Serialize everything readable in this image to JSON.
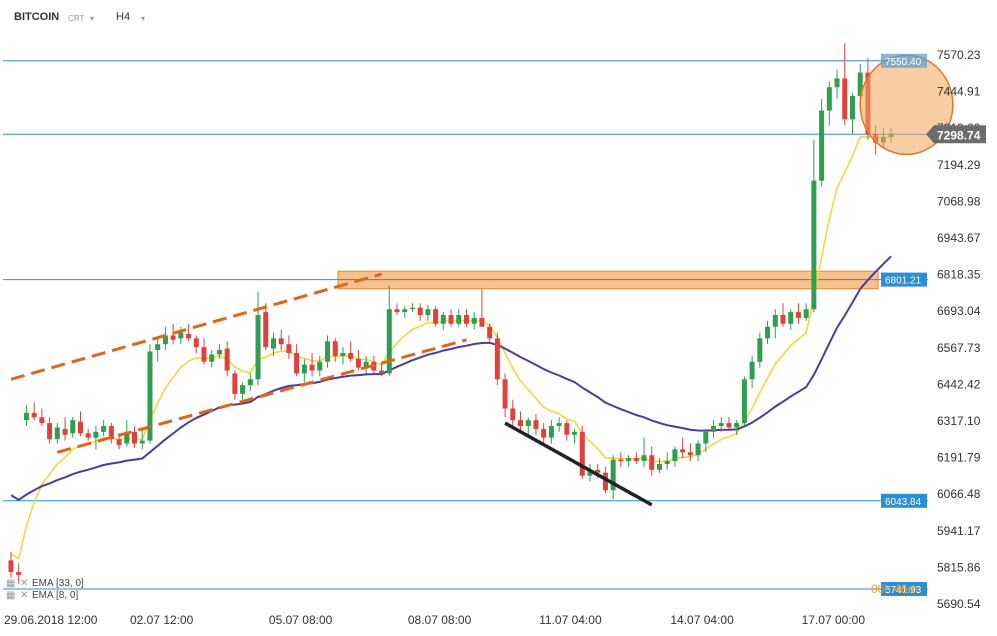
{
  "toolbar": {
    "symbol": "BITCOIN",
    "crt_label": "CRT",
    "timeframe": "H4"
  },
  "indicators": [
    {
      "label": "EMA",
      "params": "[33, 0]"
    },
    {
      "label": "EMA",
      "params": "[8, 0]"
    }
  ],
  "countdown": "00h 46m",
  "colors": {
    "bull": "#2e9e4f",
    "bear": "#e0413b",
    "ema_fast": "#f5d63d",
    "ema_slow": "#4f3aa0",
    "hline": "#2a8fd6",
    "zone": "#f5a55a",
    "trend_dash": "#e0651a",
    "trend_solid": "#222222",
    "price_box": "#6b6b6b",
    "level_box": "#2a8fd6"
  },
  "chart_data": {
    "type": "candlestick",
    "yticks": [
      "7570.23",
      "7444.91",
      "7319.60",
      "7194.29",
      "7068.98",
      "6943.67",
      "6818.35",
      "6693.04",
      "6567.73",
      "6442.42",
      "6317.10",
      "6191.79",
      "6066.48",
      "5941.17",
      "5815.86",
      "5690.54"
    ],
    "xtick_labels": [
      "29.06.2018  12:00",
      "02.07  12:00",
      "05.07  08:00",
      "08.07  08:00",
      "11.07  04:00",
      "14.07  04:00",
      "17.07  00:00"
    ],
    "xtick_index": [
      0,
      18,
      36,
      54,
      71,
      88,
      105
    ],
    "horizontal_levels": [
      7550.4,
      7298.74,
      6801.21,
      6043.84,
      5741.93
    ],
    "level_labels": [
      "7550.40",
      "6801.21",
      "6043.84",
      "5741.93"
    ],
    "current_price": "7298.74",
    "resistance_zone": [
      6770,
      6830
    ],
    "trendlines_dashed": [
      {
        "from": [
          0,
          6460
        ],
        "to": [
          48,
          6820
        ]
      },
      {
        "from": [
          6,
          6210
        ],
        "to": [
          59,
          6595
        ]
      }
    ],
    "trendline_solid": {
      "from": [
        64,
        6310
      ],
      "to": [
        83,
        6030
      ]
    },
    "highlight_ellipse": {
      "center": [
        116,
        7400
      ],
      "rx_bars": 6,
      "ry_price": 170
    },
    "candles": [
      [
        5840,
        5870,
        5780,
        5800
      ],
      [
        5800,
        5830,
        5760,
        5790
      ],
      [
        6320,
        6370,
        6300,
        6345
      ],
      [
        6345,
        6380,
        6320,
        6330
      ],
      [
        6330,
        6360,
        6300,
        6310
      ],
      [
        6310,
        6330,
        6240,
        6255
      ],
      [
        6255,
        6310,
        6240,
        6295
      ],
      [
        6290,
        6330,
        6250,
        6270
      ],
      [
        6275,
        6330,
        6260,
        6320
      ],
      [
        6315,
        6350,
        6265,
        6275
      ],
      [
        6275,
        6290,
        6250,
        6260
      ],
      [
        6260,
        6300,
        6220,
        6280
      ],
      [
        6280,
        6320,
        6265,
        6300
      ],
      [
        6300,
        6310,
        6240,
        6255
      ],
      [
        6255,
        6275,
        6220,
        6235
      ],
      [
        6240,
        6320,
        6230,
        6280
      ],
      [
        6280,
        6300,
        6225,
        6240
      ],
      [
        6240,
        6285,
        6220,
        6250
      ],
      [
        6250,
        6580,
        6240,
        6555
      ],
      [
        6560,
        6600,
        6520,
        6580
      ],
      [
        6580,
        6640,
        6560,
        6610
      ],
      [
        6610,
        6650,
        6580,
        6595
      ],
      [
        6600,
        6640,
        6580,
        6620
      ],
      [
        6615,
        6650,
        6590,
        6600
      ],
      [
        6600,
        6610,
        6550,
        6570
      ],
      [
        6570,
        6600,
        6510,
        6520
      ],
      [
        6520,
        6560,
        6500,
        6545
      ],
      [
        6545,
        6580,
        6530,
        6560
      ],
      [
        6565,
        6590,
        6470,
        6490
      ],
      [
        6480,
        6490,
        6390,
        6410
      ],
      [
        6410,
        6450,
        6390,
        6440
      ],
      [
        6440,
        6480,
        6420,
        6460
      ],
      [
        6460,
        6760,
        6440,
        6680
      ],
      [
        6690,
        6720,
        6560,
        6570
      ],
      [
        6565,
        6620,
        6540,
        6600
      ],
      [
        6600,
        6630,
        6560,
        6580
      ],
      [
        6580,
        6610,
        6530,
        6550
      ],
      [
        6550,
        6580,
        6470,
        6480
      ],
      [
        6480,
        6530,
        6450,
        6510
      ],
      [
        6510,
        6550,
        6470,
        6490
      ],
      [
        6490,
        6540,
        6470,
        6520
      ],
      [
        6520,
        6610,
        6500,
        6590
      ],
      [
        6590,
        6600,
        6520,
        6540
      ],
      [
        6540,
        6570,
        6510,
        6550
      ],
      [
        6550,
        6590,
        6520,
        6530
      ],
      [
        6530,
        6560,
        6490,
        6500
      ],
      [
        6500,
        6540,
        6480,
        6520
      ],
      [
        6520,
        6540,
        6480,
        6490
      ],
      [
        6490,
        6520,
        6470,
        6480
      ],
      [
        6480,
        6780,
        6470,
        6700
      ],
      [
        6700,
        6720,
        6680,
        6690
      ],
      [
        6690,
        6710,
        6670,
        6700
      ],
      [
        6700,
        6720,
        6690,
        6705
      ],
      [
        6705,
        6720,
        6660,
        6680
      ],
      [
        6680,
        6715,
        6660,
        6700
      ],
      [
        6700,
        6710,
        6640,
        6650
      ],
      [
        6650,
        6690,
        6630,
        6680
      ],
      [
        6680,
        6700,
        6640,
        6650
      ],
      [
        6650,
        6700,
        6640,
        6680
      ],
      [
        6680,
        6700,
        6640,
        6650
      ],
      [
        6650,
        6690,
        6630,
        6670
      ],
      [
        6670,
        6770,
        6640,
        6640
      ],
      [
        6640,
        6650,
        6590,
        6600
      ],
      [
        6600,
        6620,
        6440,
        6460
      ],
      [
        6460,
        6480,
        6330,
        6360
      ],
      [
        6360,
        6390,
        6300,
        6320
      ],
      [
        6320,
        6350,
        6280,
        6300
      ],
      [
        6300,
        6330,
        6260,
        6320
      ],
      [
        6320,
        6340,
        6270,
        6290
      ],
      [
        6290,
        6310,
        6230,
        6260
      ],
      [
        6260,
        6320,
        6240,
        6300
      ],
      [
        6300,
        6330,
        6280,
        6310
      ],
      [
        6310,
        6320,
        6250,
        6270
      ],
      [
        6270,
        6290,
        6240,
        6280
      ],
      [
        6280,
        6300,
        6120,
        6130
      ],
      [
        6130,
        6170,
        6110,
        6150
      ],
      [
        6150,
        6170,
        6120,
        6140
      ],
      [
        6140,
        6160,
        6070,
        6080
      ],
      [
        6080,
        6200,
        6050,
        6185
      ],
      [
        6185,
        6210,
        6160,
        6180
      ],
      [
        6180,
        6200,
        6160,
        6190
      ],
      [
        6190,
        6210,
        6170,
        6180
      ],
      [
        6180,
        6260,
        6160,
        6200
      ],
      [
        6200,
        6230,
        6130,
        6150
      ],
      [
        6150,
        6190,
        6140,
        6170
      ],
      [
        6170,
        6210,
        6150,
        6180
      ],
      [
        6180,
        6230,
        6160,
        6220
      ],
      [
        6220,
        6260,
        6190,
        6210
      ],
      [
        6210,
        6240,
        6180,
        6200
      ],
      [
        6200,
        6250,
        6180,
        6240
      ],
      [
        6240,
        6290,
        6210,
        6280
      ],
      [
        6280,
        6320,
        6260,
        6300
      ],
      [
        6300,
        6330,
        6280,
        6310
      ],
      [
        6310,
        6330,
        6290,
        6295
      ],
      [
        6295,
        6320,
        6270,
        6310
      ],
      [
        6310,
        6470,
        6300,
        6460
      ],
      [
        6460,
        6540,
        6430,
        6520
      ],
      [
        6520,
        6620,
        6500,
        6600
      ],
      [
        6600,
        6660,
        6580,
        6640
      ],
      [
        6640,
        6700,
        6600,
        6680
      ],
      [
        6680,
        6720,
        6640,
        6650
      ],
      [
        6650,
        6700,
        6630,
        6690
      ],
      [
        6690,
        6720,
        6650,
        6670
      ],
      [
        6670,
        6720,
        6660,
        6700
      ],
      [
        6700,
        7280,
        6690,
        7140
      ],
      [
        7140,
        7420,
        7120,
        7380
      ],
      [
        7380,
        7480,
        7330,
        7460
      ],
      [
        7460,
        7520,
        7420,
        7490
      ],
      [
        7490,
        7610,
        7330,
        7350
      ],
      [
        7350,
        7440,
        7300,
        7430
      ],
      [
        7430,
        7540,
        7380,
        7510
      ],
      [
        7510,
        7560,
        7280,
        7300
      ],
      [
        7300,
        7330,
        7230,
        7270
      ],
      [
        7270,
        7320,
        7250,
        7290
      ],
      [
        7290,
        7320,
        7270,
        7298
      ]
    ]
  }
}
